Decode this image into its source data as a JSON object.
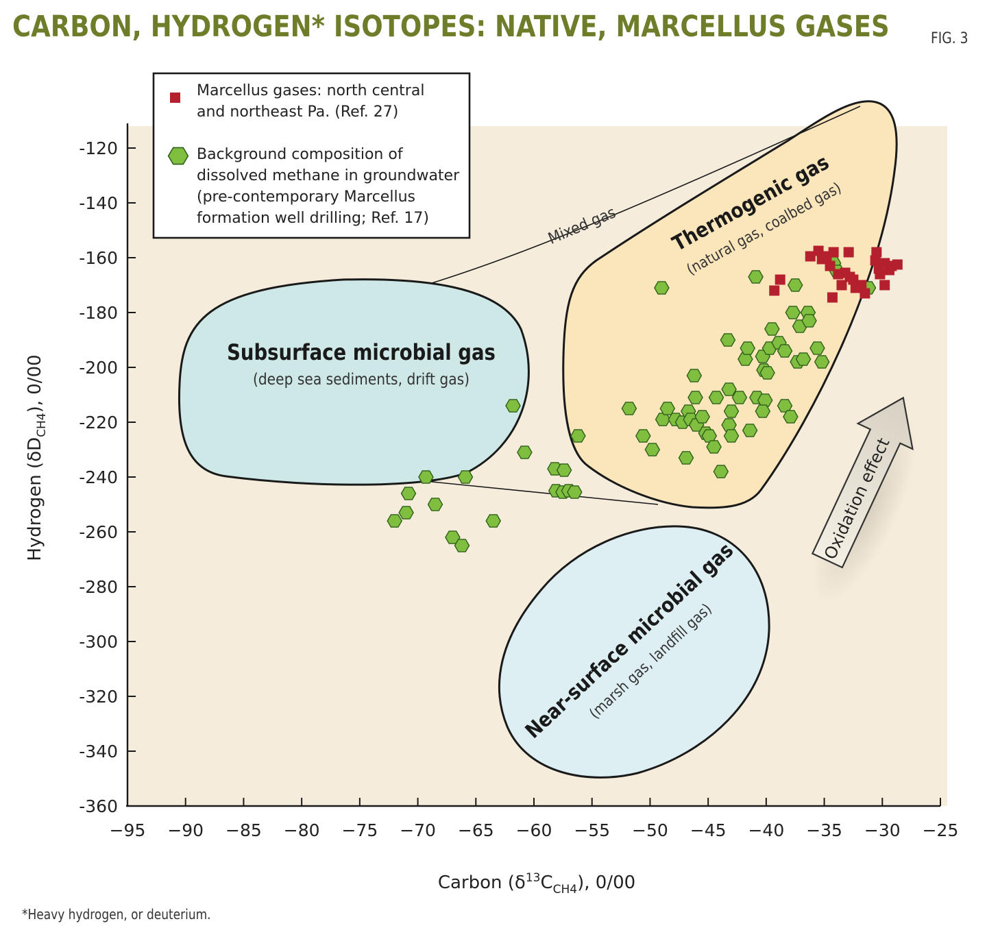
{
  "header": {
    "title": "CARBON, HYDROGEN* ISOTOPES: NATIVE, MARCELLUS GASES",
    "fig_label": "FIG. 3"
  },
  "footnote": "*Heavy hydrogen, or deuterium.",
  "colors": {
    "title": "#6e7d2a",
    "plot_bg": "#f5ecdc",
    "marcellus": "#b5202e",
    "groundwater": "#7fbe3f",
    "subsurface_region": "#cde8e6",
    "thermogenic_region": "#fbe6bc",
    "near_surface_region": "#deeff3"
  },
  "chart_data": {
    "type": "scatter",
    "title": "CARBON, HYDROGEN* ISOTOPES: NATIVE, MARCELLUS GASES",
    "xlabel": {
      "pre": "Carbon (δ",
      "sup": "13",
      "mid": "C",
      "sub": "CH4",
      "post": "), 0/00"
    },
    "ylabel": {
      "pre": "Hydrogen (δD",
      "sub": "CH4",
      "post": "), 0/00"
    },
    "xlim": [
      -95,
      -25
    ],
    "ylim": [
      -360,
      -110
    ],
    "xticks": [
      -95,
      -90,
      -85,
      -80,
      -75,
      -70,
      -65,
      -60,
      -55,
      -50,
      -45,
      -40,
      -35,
      -30,
      -25
    ],
    "yticks": [
      -120,
      -140,
      -160,
      -180,
      -200,
      -220,
      -240,
      -260,
      -280,
      -300,
      -320,
      -340,
      -360
    ],
    "legend": {
      "position": "top-left",
      "items": [
        {
          "marker": "square",
          "lines": [
            "Marcellus gases: north central",
            "and northeast Pa. (Ref. 27)"
          ]
        },
        {
          "marker": "hexagon",
          "lines": [
            "Background composition of",
            "dissolved methane in groundwater",
            "(pre-contemporary Marcellus",
            "formation well drilling; Ref. 17)"
          ]
        }
      ]
    },
    "regions": [
      {
        "name": "Subsurface microbial gas",
        "note": "(deep sea sediments, drift gas)"
      },
      {
        "name": "Thermogenic gas",
        "note": "(natural gas, coalbed gas)"
      },
      {
        "name": "Near-surface microbial gas",
        "note": "(marsh gas, landfill gas)"
      }
    ],
    "annotations": {
      "mixed_gas": "Mixed gas",
      "oxidation": "Oxidation effect"
    },
    "series": [
      {
        "name": "Marcellus gases: north central and northeast Pa. (Ref. 27)",
        "marker": "square",
        "points": [
          [
            -36.2,
            -159.5
          ],
          [
            -35.5,
            -157.5
          ],
          [
            -35.2,
            -160.5
          ],
          [
            -34.8,
            -159.5
          ],
          [
            -34.2,
            -158
          ],
          [
            -34.5,
            -163
          ],
          [
            -33.8,
            -166
          ],
          [
            -33.5,
            -170
          ],
          [
            -33.2,
            -165.5
          ],
          [
            -32.8,
            -167
          ],
          [
            -32.5,
            -168
          ],
          [
            -32.3,
            -171
          ],
          [
            -32.9,
            -158
          ],
          [
            -31.8,
            -170
          ],
          [
            -31.5,
            -173
          ],
          [
            -30.5,
            -158
          ],
          [
            -30.6,
            -161
          ],
          [
            -30.3,
            -164
          ],
          [
            -30.2,
            -166
          ],
          [
            -29.8,
            -162
          ],
          [
            -29.4,
            -164.5
          ],
          [
            -29.8,
            -170
          ],
          [
            -29.2,
            -163
          ],
          [
            -28.7,
            -162.5
          ],
          [
            -34.3,
            -174.5
          ],
          [
            -39.3,
            -172
          ],
          [
            -38.8,
            -168
          ]
        ]
      },
      {
        "name": "Background composition of dissolved methane in groundwater (pre-contemporary Marcellus formation well drilling; Ref. 17)",
        "marker": "hexagon",
        "points": [
          [
            -72,
            -256
          ],
          [
            -70.8,
            -246
          ],
          [
            -71,
            -253
          ],
          [
            -69.3,
            -240
          ],
          [
            -68.5,
            -250
          ],
          [
            -67,
            -262
          ],
          [
            -66.2,
            -265
          ],
          [
            -65.9,
            -240
          ],
          [
            -63.5,
            -256
          ],
          [
            -61.8,
            -214
          ],
          [
            -60.8,
            -231
          ],
          [
            -58.2,
            -237
          ],
          [
            -57.4,
            -237.5
          ],
          [
            -58.1,
            -245
          ],
          [
            -57.5,
            -245.5
          ],
          [
            -57,
            -245
          ],
          [
            -56.5,
            -245.5
          ],
          [
            -56.2,
            -225
          ],
          [
            -51.8,
            -215
          ],
          [
            -50.6,
            -225
          ],
          [
            -49.8,
            -230
          ],
          [
            -49,
            -171
          ],
          [
            -48.9,
            -219
          ],
          [
            -48.5,
            -215
          ],
          [
            -47.8,
            -219
          ],
          [
            -47.2,
            -220
          ],
          [
            -46.7,
            -216
          ],
          [
            -46.5,
            -219
          ],
          [
            -46,
            -221
          ],
          [
            -45.5,
            -218
          ],
          [
            -45.2,
            -224
          ],
          [
            -46.9,
            -233
          ],
          [
            -46.2,
            -203
          ],
          [
            -46.1,
            -211
          ],
          [
            -44.9,
            -225
          ],
          [
            -44.5,
            -229
          ],
          [
            -44.3,
            -211
          ],
          [
            -43.9,
            -238
          ],
          [
            -43.3,
            -190
          ],
          [
            -43.2,
            -208
          ],
          [
            -43,
            -216
          ],
          [
            -43.2,
            -221
          ],
          [
            -43,
            -225
          ],
          [
            -42.3,
            -211
          ],
          [
            -41.8,
            -197
          ],
          [
            -41.6,
            -193
          ],
          [
            -41.4,
            -223
          ],
          [
            -40.8,
            -211
          ],
          [
            -40.9,
            -167
          ],
          [
            -40.3,
            -196
          ],
          [
            -40.2,
            -201
          ],
          [
            -40.1,
            -212
          ],
          [
            -40.3,
            -216
          ],
          [
            -39.7,
            -193
          ],
          [
            -39.9,
            -202
          ],
          [
            -39.5,
            -186
          ],
          [
            -38.9,
            -191
          ],
          [
            -38.4,
            -194
          ],
          [
            -38.4,
            -214
          ],
          [
            -37.9,
            -218
          ],
          [
            -37.7,
            -180
          ],
          [
            -37.5,
            -170
          ],
          [
            -37.1,
            -185
          ],
          [
            -37.3,
            -198
          ],
          [
            -36.8,
            -197
          ],
          [
            -36.4,
            -180
          ],
          [
            -36.3,
            -183
          ],
          [
            -35.6,
            -193
          ],
          [
            -35.2,
            -198
          ],
          [
            -34.2,
            -162
          ],
          [
            -33.9,
            -165
          ],
          [
            -31.2,
            -171
          ]
        ]
      }
    ]
  }
}
